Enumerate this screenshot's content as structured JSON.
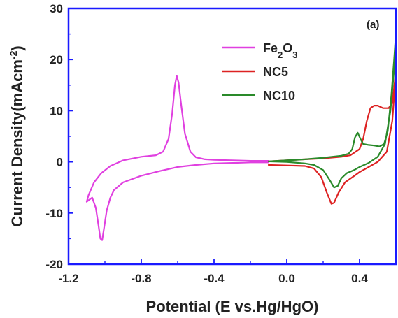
{
  "chart_data": {
    "type": "line",
    "panel_label": "(a)",
    "xlabel": "Potential (E vs.Hg/HgO)",
    "ylabel": {
      "base": "Current Density(mAcm",
      "sup": "-2",
      "close": ")"
    },
    "xlim": [
      -1.2,
      0.6
    ],
    "ylim": [
      -20,
      30
    ],
    "xticks": [
      -1.2,
      -0.8,
      -0.4,
      0.0,
      0.4
    ],
    "xtick_labels": [
      "-1.2",
      "-0.8",
      "-0.4",
      "0.0",
      "0.4"
    ],
    "yticks": [
      -20,
      -10,
      0,
      10,
      20,
      30
    ],
    "ytick_labels": [
      "-20",
      "-10",
      "0",
      "10",
      "20",
      "30"
    ],
    "legend_placement": "top-center",
    "series": [
      {
        "name": "Fe2O3",
        "legend_parts": [
          {
            "text": "Fe",
            "sub": false
          },
          {
            "text": "2",
            "sub": true
          },
          {
            "text": "O",
            "sub": false
          },
          {
            "text": "3",
            "sub": true
          }
        ],
        "color": "#e040e0",
        "points": [
          [
            -0.1,
            0.2
          ],
          [
            -0.2,
            0.2
          ],
          [
            -0.3,
            0.3
          ],
          [
            -0.4,
            0.4
          ],
          [
            -0.45,
            0.5
          ],
          [
            -0.5,
            0.9
          ],
          [
            -0.53,
            2.0
          ],
          [
            -0.56,
            5.5
          ],
          [
            -0.58,
            11.0
          ],
          [
            -0.595,
            15.5
          ],
          [
            -0.605,
            16.8
          ],
          [
            -0.615,
            15.0
          ],
          [
            -0.63,
            9.5
          ],
          [
            -0.65,
            4.5
          ],
          [
            -0.68,
            2.0
          ],
          [
            -0.72,
            1.3
          ],
          [
            -0.8,
            1.0
          ],
          [
            -0.9,
            0.3
          ],
          [
            -0.97,
            -0.8
          ],
          [
            -1.02,
            -2.2
          ],
          [
            -1.06,
            -4.0
          ],
          [
            -1.09,
            -6.5
          ],
          [
            -1.1,
            -7.8
          ],
          [
            -1.09,
            -7.5
          ],
          [
            -1.07,
            -7.0
          ],
          [
            -1.05,
            -9.0
          ],
          [
            -1.035,
            -12.5
          ],
          [
            -1.025,
            -15.0
          ],
          [
            -1.015,
            -15.3
          ],
          [
            -1.005,
            -13.0
          ],
          [
            -0.99,
            -9.5
          ],
          [
            -0.97,
            -7.0
          ],
          [
            -0.95,
            -5.5
          ],
          [
            -0.9,
            -4.0
          ],
          [
            -0.8,
            -2.7
          ],
          [
            -0.7,
            -1.8
          ],
          [
            -0.6,
            -1.0
          ],
          [
            -0.5,
            -0.6
          ],
          [
            -0.4,
            -0.3
          ],
          [
            -0.3,
            -0.2
          ],
          [
            -0.2,
            -0.1
          ],
          [
            -0.1,
            -0.1
          ]
        ]
      },
      {
        "name": "NC5",
        "legend_parts": [
          {
            "text": "NC5",
            "sub": false
          }
        ],
        "color": "#dd2222",
        "points": [
          [
            -0.1,
            -0.6
          ],
          [
            0.0,
            -0.7
          ],
          [
            0.1,
            -0.8
          ],
          [
            0.15,
            -1.3
          ],
          [
            0.19,
            -3.0
          ],
          [
            0.22,
            -6.0
          ],
          [
            0.245,
            -8.2
          ],
          [
            0.26,
            -8.0
          ],
          [
            0.285,
            -6.0
          ],
          [
            0.32,
            -4.0
          ],
          [
            0.36,
            -3.0
          ],
          [
            0.4,
            -2.0
          ],
          [
            0.45,
            -1.0
          ],
          [
            0.5,
            0.0
          ],
          [
            0.55,
            2.0
          ],
          [
            0.58,
            8.0
          ],
          [
            0.6,
            17.5
          ],
          [
            0.58,
            11.5
          ],
          [
            0.56,
            10.5
          ],
          [
            0.53,
            10.5
          ],
          [
            0.5,
            11.0
          ],
          [
            0.48,
            11.0
          ],
          [
            0.46,
            10.5
          ],
          [
            0.44,
            8.0
          ],
          [
            0.42,
            4.5
          ],
          [
            0.4,
            2.5
          ],
          [
            0.35,
            1.3
          ],
          [
            0.3,
            1.0
          ],
          [
            0.2,
            0.7
          ],
          [
            0.1,
            0.5
          ],
          [
            0.0,
            0.3
          ],
          [
            -0.1,
            0.1
          ]
        ]
      },
      {
        "name": "NC10",
        "legend_parts": [
          {
            "text": "NC10",
            "sub": false
          }
        ],
        "color": "#2a8a2a",
        "points": [
          [
            -0.1,
            0.1
          ],
          [
            0.0,
            0.0
          ],
          [
            0.1,
            -0.3
          ],
          [
            0.15,
            -0.6
          ],
          [
            0.2,
            -1.6
          ],
          [
            0.235,
            -3.5
          ],
          [
            0.26,
            -5.0
          ],
          [
            0.28,
            -4.7
          ],
          [
            0.3,
            -3.2
          ],
          [
            0.33,
            -2.2
          ],
          [
            0.37,
            -1.6
          ],
          [
            0.4,
            -1.0
          ],
          [
            0.45,
            -0.2
          ],
          [
            0.5,
            1.0
          ],
          [
            0.54,
            3.5
          ],
          [
            0.57,
            10.0
          ],
          [
            0.59,
            18.0
          ],
          [
            0.6,
            25.0
          ],
          [
            0.59,
            20.0
          ],
          [
            0.575,
            13.0
          ],
          [
            0.555,
            6.0
          ],
          [
            0.535,
            3.5
          ],
          [
            0.51,
            3.0
          ],
          [
            0.48,
            3.2
          ],
          [
            0.45,
            3.3
          ],
          [
            0.42,
            3.5
          ],
          [
            0.405,
            4.5
          ],
          [
            0.39,
            5.7
          ],
          [
            0.375,
            4.8
          ],
          [
            0.36,
            2.5
          ],
          [
            0.34,
            1.6
          ],
          [
            0.3,
            1.2
          ],
          [
            0.2,
            0.8
          ],
          [
            0.1,
            0.5
          ],
          [
            0.0,
            0.3
          ],
          [
            -0.1,
            0.1
          ]
        ]
      }
    ]
  }
}
